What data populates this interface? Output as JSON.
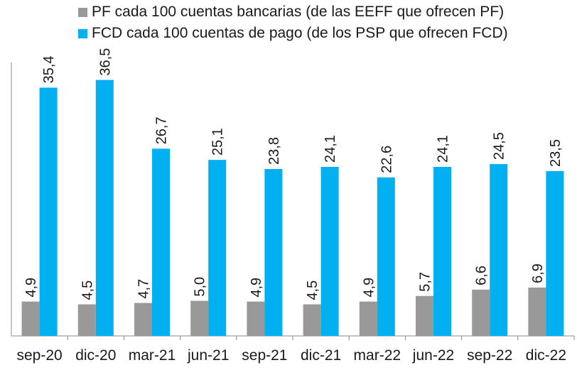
{
  "chart_data": {
    "type": "bar",
    "categories": [
      "sep-20",
      "dic-20",
      "mar-21",
      "jun-21",
      "sep-21",
      "dic-21",
      "mar-22",
      "jun-22",
      "sep-22",
      "dic-22"
    ],
    "series": [
      {
        "name": "PF cada 100 cuentas bancarias (de las EEFF que ofrecen PF)",
        "color": "#999999",
        "values": [
          4.9,
          4.5,
          4.7,
          5.0,
          4.9,
          4.5,
          4.9,
          5.7,
          6.6,
          6.9
        ],
        "labels": [
          "4,9",
          "4,5",
          "4,7",
          "5,0",
          "4,9",
          "4,5",
          "4,9",
          "5,7",
          "6,6",
          "6,9"
        ]
      },
      {
        "name": "FCD cada 100 cuentas de pago (de los PSP que ofrecen FCD)",
        "color": "#00b0f0",
        "values": [
          35.4,
          36.5,
          26.7,
          25.1,
          23.8,
          24.1,
          22.6,
          24.1,
          24.5,
          23.5
        ],
        "labels": [
          "35,4",
          "36,5",
          "26,7",
          "25,1",
          "23,8",
          "24,1",
          "22,6",
          "24,1",
          "24,5",
          "23,5"
        ]
      }
    ],
    "ylim": [
      0,
      40
    ],
    "grid": false,
    "legend": "top",
    "title": "",
    "xlabel": "",
    "ylabel": ""
  }
}
